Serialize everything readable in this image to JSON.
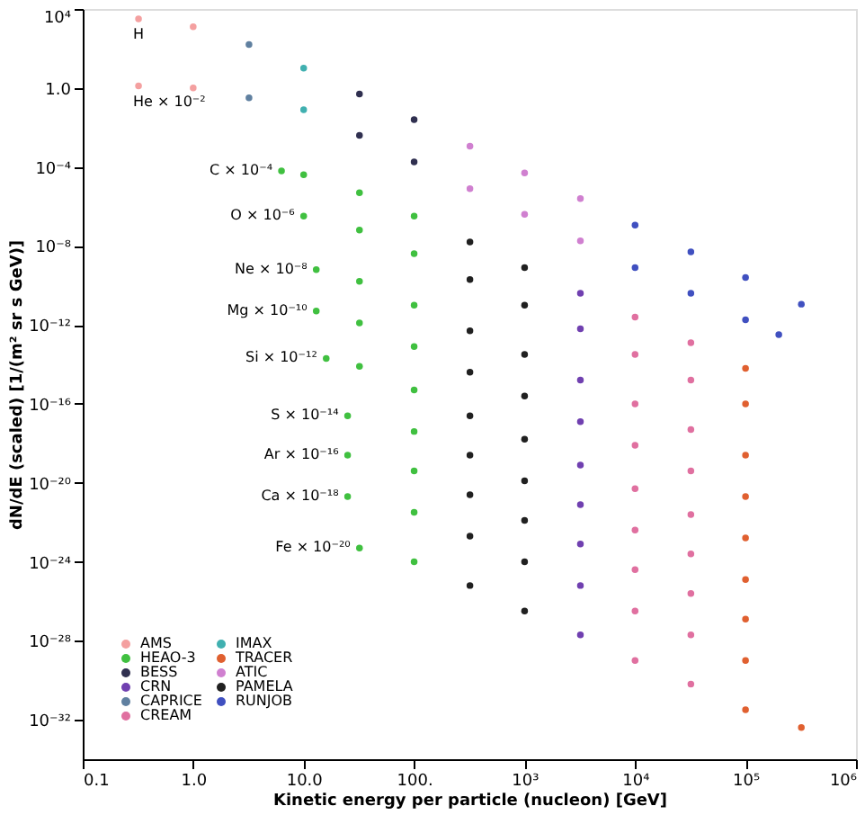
{
  "chart_data": {
    "type": "scatter",
    "xlabel": "Kinetic energy per particle (nucleon)   [GeV]",
    "ylabel": "dN/dE (scaled)  [1/(m² sr s GeV)]",
    "log": "xy",
    "grid": false,
    "marker": "circle",
    "legend": "bottom left",
    "xlim": [
      0.1,
      1000000
    ],
    "ylim": [
      1e-34,
      10000
    ],
    "xticks": [
      0.1,
      {
        "value": 1,
        "label": "1.0"
      },
      {
        "value": 10,
        "label": "10.0"
      },
      {
        "value": 100,
        "label": "100."
      },
      {
        "value": 1000,
        "label": "10³"
      },
      {
        "value": 10000,
        "label": "10⁴"
      },
      {
        "value": 100000,
        "label": "10⁵"
      },
      {
        "value": 1000000,
        "label": "10⁶"
      }
    ],
    "yticks": [
      {
        "value": 10000,
        "label": "10⁴"
      },
      {
        "value": 1,
        "label": "1.0"
      },
      {
        "value": 0.0001,
        "label": "10⁻⁴"
      },
      {
        "value": 1e-08,
        "label": "10⁻⁸"
      },
      {
        "value": 1e-12,
        "label": "10⁻¹²"
      },
      {
        "value": 1e-16,
        "label": "10⁻¹⁶"
      },
      {
        "value": 1e-20,
        "label": "10⁻²⁰"
      },
      {
        "value": 1e-24,
        "label": "10⁻²⁴"
      },
      {
        "value": 1e-28,
        "label": "10⁻²⁸"
      },
      {
        "value": 1e-32,
        "label": "10⁻³²"
      }
    ],
    "series": [
      {
        "name": "AMS",
        "color": "#f4a0a0",
        "x": [
          0.32,
          1,
          0.32,
          1
        ],
        "values": [
          3160,
          1260,
          1.26,
          1
        ]
      },
      {
        "name": "HEAO-3",
        "color": "#40c040",
        "x": [
          6.3,
          10,
          32,
          100,
          10,
          32,
          100,
          13,
          32,
          100,
          13,
          32,
          100,
          16,
          32,
          100,
          25,
          100,
          25,
          100,
          25,
          100,
          32,
          100
        ],
        "values": [
          6.3e-05,
          4e-05,
          5e-06,
          3.2e-07,
          3.2e-07,
          6.3e-08,
          4e-09,
          6.3e-10,
          1.6e-10,
          1e-11,
          5e-12,
          1.26e-12,
          7.9e-14,
          2e-14,
          7.9e-15,
          5e-16,
          2.5e-17,
          4e-18,
          2.5e-19,
          4e-20,
          2e-21,
          3.2e-22,
          5e-24,
          1e-24
        ]
      },
      {
        "name": "BESS",
        "color": "#303050",
        "x": [
          32,
          100,
          32,
          100
        ],
        "values": [
          0.5,
          0.025,
          0.004,
          0.00018
        ]
      },
      {
        "name": "CRN",
        "color": "#7040b0",
        "x": [
          3200,
          3200,
          3200,
          3200,
          3200,
          3200,
          3200,
          3200,
          3200
        ],
        "values": [
          4e-11,
          6.3e-13,
          1.6e-15,
          1.26e-17,
          7.9e-20,
          7.9e-22,
          7.9e-24,
          6.3e-26,
          2e-28
        ]
      },
      {
        "name": "CAPRICE",
        "color": "#6080a0",
        "x": [
          3.2,
          3.2
        ],
        "values": [
          158,
          0.316
        ]
      },
      {
        "name": "CREAM",
        "color": "#e070a0",
        "x": [
          10000,
          32000,
          10000,
          32000,
          10000,
          32000,
          10000,
          32000,
          10000,
          32000,
          10000,
          32000,
          10000,
          32000,
          10000,
          32000,
          10000,
          32000
        ],
        "values": [
          2.5e-12,
          1.26e-13,
          3.2e-14,
          1.6e-15,
          1e-16,
          5e-18,
          7.9e-19,
          4e-20,
          5e-21,
          2.5e-22,
          4e-23,
          2.5e-24,
          4e-25,
          2.5e-26,
          3.2e-27,
          2e-28,
          1e-29,
          6.3e-31
        ]
      },
      {
        "name": "IMAX",
        "color": "#40b0b0",
        "x": [
          10,
          10
        ],
        "values": [
          10,
          0.079
        ]
      },
      {
        "name": "TRACER",
        "color": "#e06030",
        "x": [
          100000,
          100000,
          100000,
          100000,
          100000,
          100000,
          100000,
          100000,
          100000,
          320000
        ],
        "values": [
          6.3e-15,
          1e-16,
          2.5e-19,
          2e-21,
          1.6e-23,
          1.26e-25,
          1.26e-27,
          1e-29,
          3.2e-32,
          4e-33
        ]
      },
      {
        "name": "ATIC",
        "color": "#d080d0",
        "x": [
          320,
          1000,
          3200,
          320,
          1000,
          3200
        ],
        "values": [
          0.00112,
          5e-05,
          2.5e-06,
          7.9e-06,
          4e-07,
          1.8e-08
        ]
      },
      {
        "name": "PAMELA",
        "color": "#202020",
        "x": [
          320,
          1000,
          320,
          1000,
          320,
          1000,
          320,
          1000,
          320,
          1000,
          320,
          1000,
          320,
          1000,
          320,
          1000,
          320,
          1000
        ],
        "values": [
          1.6e-08,
          7.9e-10,
          2e-10,
          1e-11,
          5e-13,
          3.2e-14,
          4e-15,
          2.5e-16,
          2.5e-17,
          1.6e-18,
          2.5e-19,
          1.26e-20,
          2.5e-21,
          1.26e-22,
          2e-23,
          1e-24,
          6.3e-26,
          3.2e-27
        ]
      },
      {
        "name": "RUNJOB",
        "color": "#4050c0",
        "x": [
          10000,
          32000,
          100000,
          320000,
          10000,
          32000,
          100000,
          200000
        ],
        "values": [
          1.12e-07,
          5e-09,
          2.5e-10,
          1.12e-11,
          7.9e-10,
          4e-11,
          1.8e-12,
          3.2e-13
        ]
      }
    ],
    "annotations": [
      {
        "text": "H",
        "x": 0.32,
        "y": 3160
      },
      {
        "text": "He × 10⁻²",
        "x": 0.32,
        "y": 1.26
      },
      {
        "text": "C × 10⁻⁴",
        "x": 6.3,
        "y": 6.3e-05
      },
      {
        "text": "O × 10⁻⁶",
        "x": 10,
        "y": 3.2e-07
      },
      {
        "text": "Ne × 10⁻⁸",
        "x": 13,
        "y": 6.3e-10
      },
      {
        "text": "Mg × 10⁻¹⁰",
        "x": 13,
        "y": 5e-12
      },
      {
        "text": "Si × 10⁻¹²",
        "x": 16,
        "y": 2e-14
      },
      {
        "text": "S × 10⁻¹⁴",
        "x": 25,
        "y": 2.5e-17
      },
      {
        "text": "Ar × 10⁻¹⁶",
        "x": 25,
        "y": 2.5e-19
      },
      {
        "text": "Ca × 10⁻¹⁸",
        "x": 25,
        "y": 2e-21
      },
      {
        "text": "Fe × 10⁻²⁰",
        "x": 32,
        "y": 5e-24
      }
    ]
  }
}
